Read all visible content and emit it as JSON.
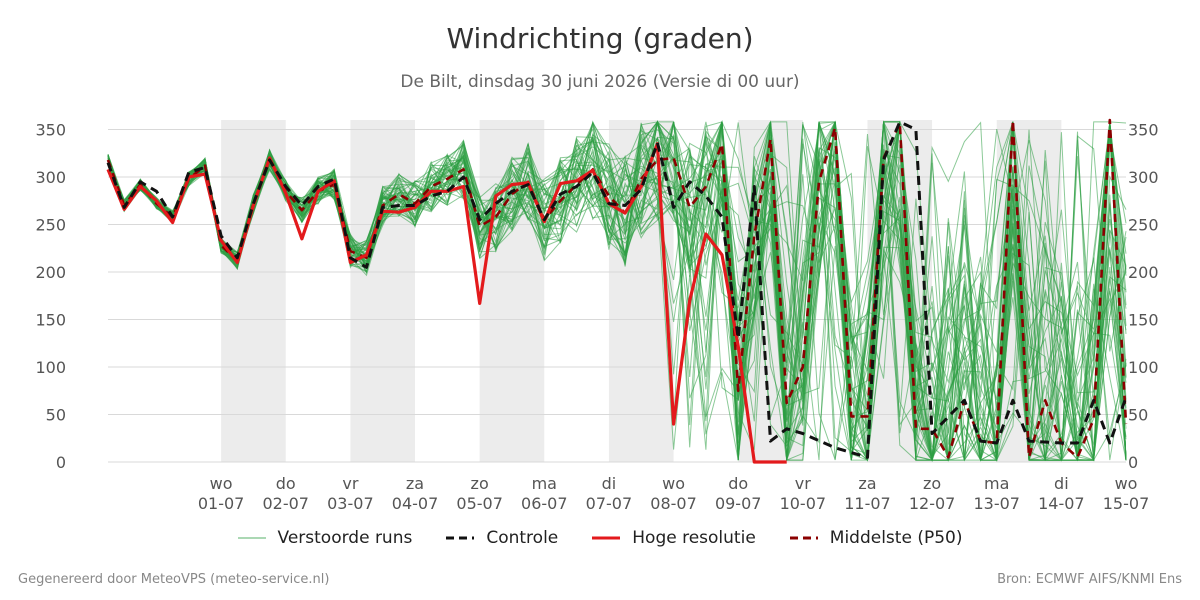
{
  "header": {
    "title": "Windrichting (graden)",
    "subtitle": "De Bilt, dinsdag 30 juni 2026 (Versie di 00 uur)"
  },
  "footer": {
    "left": "Gegenereerd door MeteoVPS (meteo-service.nl)",
    "right": "Bron: ECMWF AIFS/KNMI Ens"
  },
  "colors": {
    "ensemble": "#2e9e44",
    "control": "#111111",
    "high_res": "#e31a1c",
    "median": "#8b0000",
    "weekend_shade": "#ececec",
    "grid": "#d9d9d9"
  },
  "chart_data": {
    "type": "line",
    "title": "Windrichting (graden)",
    "ylim": [
      0,
      360
    ],
    "yticks": [
      0,
      50,
      100,
      150,
      200,
      250,
      300,
      350
    ],
    "y_axes": [
      "left",
      "right"
    ],
    "grid": "horizontal",
    "legend_position": "bottom-center",
    "x_unit": "days since 30-06 00 uur",
    "xlim": [
      -0.75,
      15
    ],
    "x_ticks": [
      {
        "x": 1,
        "day": "wo",
        "date": "01-07"
      },
      {
        "x": 2,
        "day": "do",
        "date": "02-07"
      },
      {
        "x": 3,
        "day": "vr",
        "date": "03-07"
      },
      {
        "x": 4,
        "day": "za",
        "date": "04-07"
      },
      {
        "x": 5,
        "day": "zo",
        "date": "05-07"
      },
      {
        "x": 6,
        "day": "ma",
        "date": "06-07"
      },
      {
        "x": 7,
        "day": "di",
        "date": "07-07"
      },
      {
        "x": 8,
        "day": "wo",
        "date": "08-07"
      },
      {
        "x": 9,
        "day": "do",
        "date": "09-07"
      },
      {
        "x": 10,
        "day": "vr",
        "date": "10-07"
      },
      {
        "x": 11,
        "day": "za",
        "date": "11-07"
      },
      {
        "x": 12,
        "day": "zo",
        "date": "12-07"
      },
      {
        "x": 13,
        "day": "ma",
        "date": "13-07"
      },
      {
        "x": 14,
        "day": "di",
        "date": "14-07"
      },
      {
        "x": 15,
        "day": "wo",
        "date": "15-07"
      }
    ],
    "shaded_bands": [
      [
        1,
        2
      ],
      [
        3,
        4
      ],
      [
        5,
        6
      ],
      [
        7,
        8
      ],
      [
        9,
        10
      ],
      [
        11,
        12
      ],
      [
        13,
        14
      ]
    ],
    "legend": [
      {
        "label": "Verstoorde runs",
        "style": "thin-green"
      },
      {
        "label": "Controle",
        "style": "dashed-black"
      },
      {
        "label": "Hoge resolutie",
        "style": "solid-red"
      },
      {
        "label": "Middelste (P50)",
        "style": "dashed-darkred"
      }
    ],
    "series": [
      {
        "name": "Controle",
        "style": "dashed-black",
        "x": [
          -0.75,
          -0.5,
          -0.25,
          0,
          0.25,
          0.5,
          0.75,
          1,
          1.25,
          1.5,
          1.75,
          2,
          2.25,
          2.5,
          2.75,
          3,
          3.25,
          3.5,
          3.75,
          4,
          4.25,
          4.5,
          4.75,
          5,
          5.25,
          5.5,
          5.75,
          6,
          6.25,
          6.5,
          6.75,
          7,
          7.25,
          7.5,
          7.75,
          8,
          8.25,
          8.5,
          8.75,
          9,
          9.25,
          9.5,
          9.75,
          10,
          10.5,
          11,
          11.25,
          11.5,
          11.75,
          12,
          12.5,
          12.75,
          13,
          13.25,
          13.5,
          14,
          14.25,
          14.5,
          14.75,
          15
        ],
        "y": [
          315,
          268,
          295,
          285,
          258,
          305,
          310,
          238,
          215,
          272,
          318,
          290,
          270,
          290,
          298,
          215,
          205,
          268,
          270,
          270,
          280,
          285,
          300,
          255,
          272,
          285,
          292,
          255,
          282,
          290,
          305,
          272,
          270,
          287,
          336,
          268,
          295,
          280,
          258,
          130,
          290,
          22,
          35,
          30,
          15,
          5,
          318,
          358,
          350,
          30,
          65,
          22,
          20,
          65,
          22,
          20,
          20,
          65,
          20,
          68
        ]
      },
      {
        "name": "Hoge resolutie",
        "style": "solid-red",
        "x": [
          -0.75,
          -0.5,
          -0.25,
          0,
          0.25,
          0.5,
          0.75,
          1,
          1.25,
          1.5,
          1.75,
          2,
          2.25,
          2.5,
          2.75,
          3,
          3.25,
          3.5,
          3.75,
          4,
          4.25,
          4.5,
          4.75,
          5,
          5.25,
          5.5,
          5.75,
          6,
          6.25,
          6.5,
          6.75,
          7,
          7.25,
          7.5,
          7.75,
          8,
          8.25,
          8.5,
          8.75,
          9,
          9.25,
          9.5,
          9.75
        ],
        "y": [
          308,
          266,
          290,
          275,
          252,
          300,
          303,
          233,
          210,
          270,
          320,
          283,
          235,
          285,
          296,
          210,
          218,
          264,
          263,
          268,
          285,
          285,
          290,
          167,
          280,
          292,
          294,
          253,
          293,
          296,
          307,
          272,
          262,
          290,
          335,
          40,
          170,
          240,
          218,
          122,
          0,
          0,
          0
        ]
      },
      {
        "name": "Middelste (P50)",
        "style": "dashed-darkred",
        "x": [
          -0.75,
          -0.5,
          -0.25,
          0,
          0.25,
          0.5,
          0.75,
          1,
          1.25,
          1.5,
          1.75,
          2,
          2.25,
          2.5,
          2.75,
          3,
          3.25,
          3.5,
          3.75,
          4,
          4.25,
          4.5,
          4.75,
          5,
          5.25,
          5.5,
          5.75,
          6,
          6.25,
          6.5,
          6.75,
          7,
          7.25,
          7.5,
          7.75,
          8,
          8.25,
          8.5,
          8.75,
          9,
          9.25,
          9.5,
          9.75,
          10,
          10.25,
          10.5,
          10.75,
          11,
          11.25,
          11.5,
          11.75,
          12,
          12.25,
          12.5,
          12.75,
          13,
          13.25,
          13.5,
          13.75,
          14,
          14.25,
          14.5,
          14.75,
          15
        ],
        "y": [
          318,
          270,
          292,
          272,
          258,
          298,
          312,
          228,
          212,
          272,
          318,
          285,
          265,
          285,
          292,
          222,
          215,
          270,
          282,
          272,
          290,
          298,
          308,
          248,
          258,
          282,
          295,
          255,
          275,
          292,
          308,
          280,
          262,
          298,
          318,
          320,
          268,
          290,
          335,
          75,
          238,
          340,
          62,
          100,
          295,
          352,
          48,
          48,
          320,
          357,
          35,
          35,
          5,
          65,
          22,
          20,
          360,
          5,
          65,
          20,
          5,
          45,
          360,
          40
        ]
      }
    ]
  }
}
